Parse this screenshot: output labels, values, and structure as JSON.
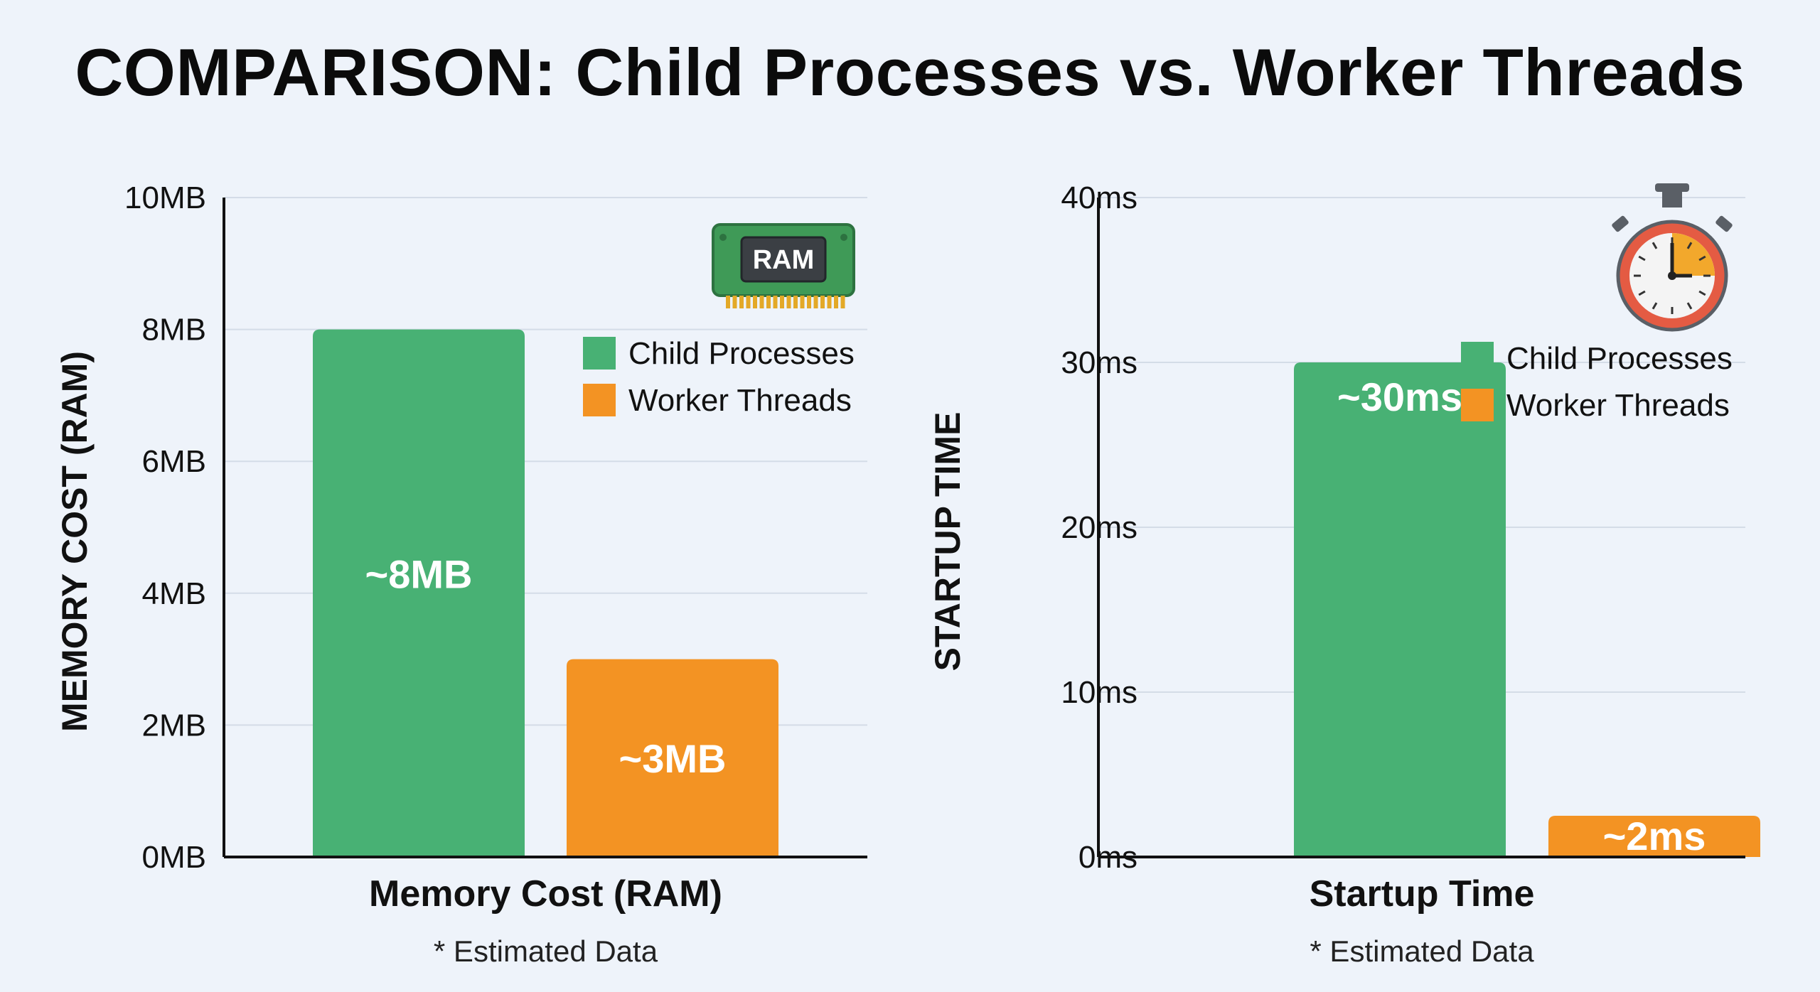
{
  "title": "COMPARISON: Child Processes vs. Worker Threads",
  "colors": {
    "child": "#48b174",
    "worker": "#f39323",
    "grid": "#d4dce7",
    "axis": "#111111",
    "background": "#eef3fa"
  },
  "chart_data": [
    {
      "type": "bar",
      "categories": [
        "Child Processes",
        "Worker Threads"
      ],
      "values": [
        8,
        3
      ],
      "value_labels": [
        "~8MB",
        "~3MB"
      ],
      "ylabel": "MEMORY COST (RAM)",
      "xlabel": "Memory Cost (RAM)",
      "note": "* Estimated Data",
      "ylim": [
        0,
        10
      ],
      "yticks": [
        0,
        2,
        4,
        6,
        8,
        10
      ],
      "ytick_labels": [
        "0MB",
        "2MB",
        "4MB",
        "6MB",
        "8MB",
        "10MB"
      ],
      "legend": [
        "Child Processes",
        "Worker Threads"
      ],
      "legend_position": "top-right",
      "grid": true,
      "icon": "ram-chip-icon",
      "icon_text": "RAM"
    },
    {
      "type": "bar",
      "categories": [
        "Child Processes",
        "Worker Threads"
      ],
      "values": [
        30,
        2.5
      ],
      "value_labels": [
        "~30ms",
        "~2ms"
      ],
      "ylabel": "STARTUP TIME",
      "xlabel": "Startup Time",
      "note": "* Estimated Data",
      "ylim": [
        0,
        40
      ],
      "yticks": [
        0,
        10,
        20,
        30,
        40
      ],
      "ytick_labels": [
        "0ms",
        "10ms",
        "20ms",
        "30ms",
        "40ms"
      ],
      "legend": [
        "Child Processes",
        "Worker Threads"
      ],
      "legend_position": "top-right",
      "grid": true,
      "icon": "stopwatch-icon"
    }
  ]
}
